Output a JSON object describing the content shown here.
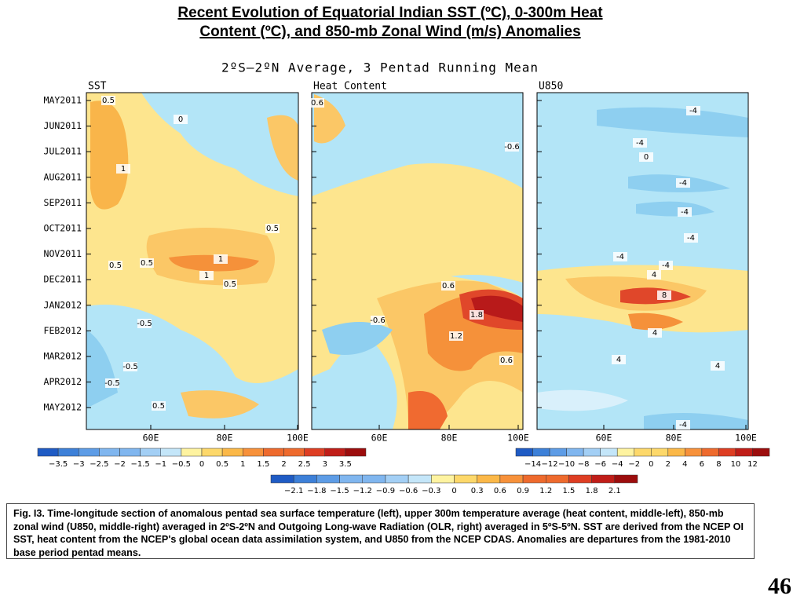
{
  "header": {
    "title_lines": [
      "Recent Evolution of Equatorial Indian SST (ºC), 0-300m Heat",
      "Content (ºC), and 850-mb Zonal Wind (m/s) Anomalies"
    ]
  },
  "figure": {
    "subtitle": "2ºS–2ºN Average, 3 Pentad Running Mean",
    "time_labels": [
      "MAY2011",
      "JUN2011",
      "JUL2011",
      "AUG2011",
      "SEP2011",
      "OCT2011",
      "NOV2011",
      "DEC2011",
      "JAN2012",
      "FEB2012",
      "MAR2012",
      "APR2012",
      "MAY2012"
    ],
    "panels": [
      {
        "name": "SST",
        "x_labels": [
          "60E",
          "80E",
          "100E"
        ],
        "contour_labels": [
          "0.5",
          "0",
          "1",
          "0.5",
          "0.5",
          "0.5",
          "1",
          "1",
          "0.5",
          "-0.5",
          "-0.5",
          "-0.5",
          "0.5"
        ]
      },
      {
        "name": "Heat Content",
        "x_labels": [
          "60E",
          "80E",
          "100E"
        ],
        "contour_labels": [
          "0.6",
          "-0.6",
          "0.6",
          "-0.6",
          "1.8",
          "1.2",
          "0.6"
        ]
      },
      {
        "name": "U850",
        "x_labels": [
          "60E",
          "80E",
          "100E"
        ],
        "contour_labels": [
          "-4",
          "-4",
          "0",
          "-4",
          "-4",
          "-4",
          "-4",
          "-4",
          "4",
          "8",
          "4",
          "4",
          "4",
          "-4"
        ]
      }
    ],
    "colorbars": [
      {
        "labels": [
          "−3.5",
          "−3",
          "−2.5",
          "−2",
          "−1.5",
          "−1",
          "−0.5",
          "0",
          "0.5",
          "1",
          "1.5",
          "2",
          "2.5",
          "3",
          "3.5"
        ]
      },
      {
        "labels": [
          "−14",
          "−12",
          "−10",
          "−8",
          "−6",
          "−4",
          "−2",
          "0",
          "2",
          "4",
          "6",
          "8",
          "10",
          "12"
        ]
      },
      {
        "labels": [
          "−2.1",
          "−1.8",
          "−1.5",
          "−1.2",
          "−0.9",
          "−0.6",
          "−0.3",
          "0",
          "0.3",
          "0.6",
          "0.9",
          "1.2",
          "1.5",
          "1.8",
          "2.1"
        ]
      }
    ]
  },
  "caption": "Fig. I3. Time-longitude section of anomalous pentad sea surface temperature (left), upper 300m temperature average (heat content, middle-left), 850-mb zonal wind (U850, middle-right) averaged in 2ºS-2ºN and Outgoing Long-wave Radiation (OLR, right) averaged in 5ºS-5ºN. SST are derived from the NCEP OI SST, heat content from the NCEP's global ocean data assimilation system, and U850 from the NCEP CDAS.  Anomalies are departures from the 1981-2010 base period pentad means.",
  "page_number": "46"
}
